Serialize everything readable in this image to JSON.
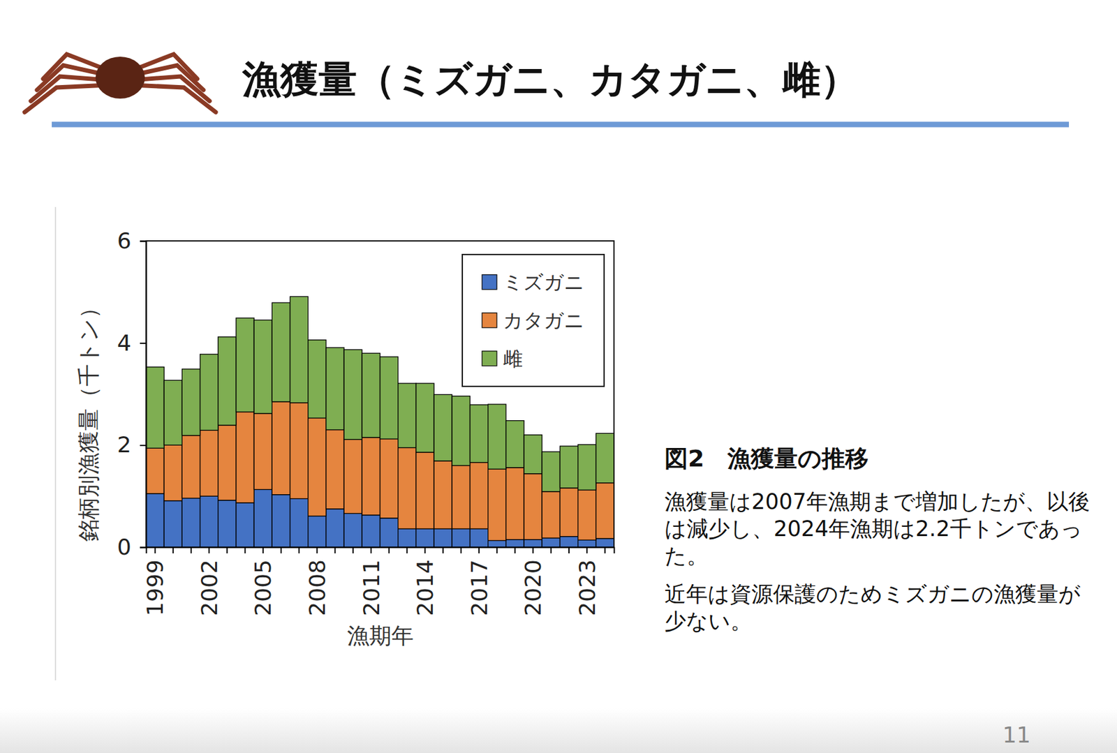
{
  "slide": {
    "title": "漁獲量（ミズガニ、カタガニ、雌）",
    "figure_caption": "図2　漁獲量の推移",
    "paragraphs": [
      "漁獲量は2007年漁期まで増加したが、以後は減少し、2024年漁期は2.2千トンであった。",
      "近年は資源保護のためミズガニの漁獲量が少ない。"
    ],
    "page": "11"
  },
  "chart_data": {
    "type": "bar",
    "stacked": true,
    "grid": false,
    "legend": "top-right",
    "x_label": "漁期年",
    "y_label": "銘柄別漁獲量（千トン）",
    "categories": [
      "1999",
      null,
      null,
      "2002",
      null,
      null,
      "2005",
      null,
      null,
      "2008",
      null,
      null,
      "2011",
      null,
      null,
      "2014",
      null,
      null,
      "2017",
      null,
      null,
      "2020",
      null,
      null,
      "2023",
      null
    ],
    "series": [
      {
        "name": "ミズガニ",
        "color": "#4472c4",
        "values": [
          1.05,
          0.91,
          0.96,
          1.0,
          0.92,
          0.87,
          1.13,
          1.03,
          0.95,
          0.61,
          0.75,
          0.66,
          0.63,
          0.57,
          0.36,
          0.36,
          0.36,
          0.36,
          0.36,
          0.13,
          0.15,
          0.15,
          0.18,
          0.21,
          0.14,
          0.17
        ]
      },
      {
        "name": "カタガニ",
        "color": "#e5853f",
        "values": [
          0.89,
          1.09,
          1.23,
          1.29,
          1.47,
          1.78,
          1.49,
          1.82,
          1.88,
          1.92,
          1.55,
          1.45,
          1.52,
          1.55,
          1.59,
          1.5,
          1.33,
          1.24,
          1.3,
          1.4,
          1.41,
          1.29,
          0.91,
          0.95,
          0.98,
          1.09
        ]
      },
      {
        "name": "雌",
        "color": "#7fae52",
        "values": [
          1.59,
          1.27,
          1.3,
          1.49,
          1.73,
          1.84,
          1.83,
          1.94,
          2.08,
          1.53,
          1.61,
          1.76,
          1.65,
          1.61,
          1.26,
          1.35,
          1.3,
          1.36,
          1.13,
          1.27,
          0.92,
          0.76,
          0.78,
          0.82,
          0.89,
          0.97
        ]
      }
    ],
    "ylim": [
      0,
      6
    ],
    "yticks": [
      0,
      2,
      4,
      6
    ]
  }
}
